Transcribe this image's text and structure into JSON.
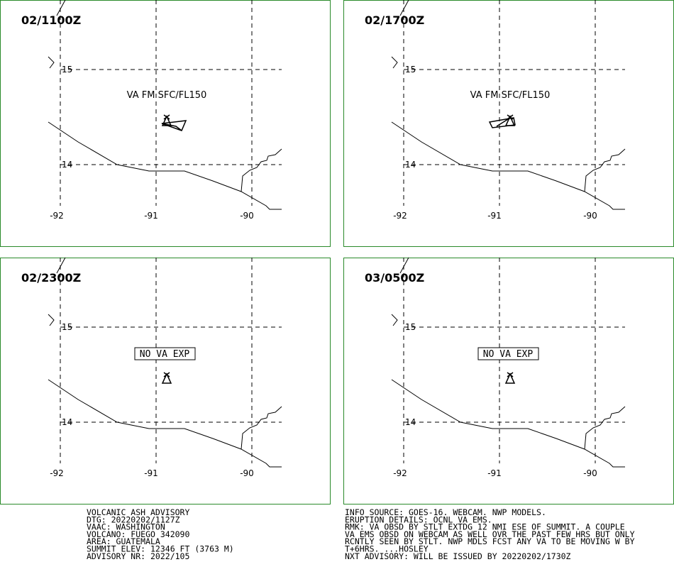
{
  "panels": [
    {
      "time": "02/1100Z",
      "lat_labels": [
        "15",
        "14"
      ],
      "lon_labels": [
        "-92",
        "-91",
        "-90"
      ],
      "annotation": "VA FM SFC/FL150"
    },
    {
      "time": "02/1700Z",
      "lat_labels": [
        "15",
        "14"
      ],
      "lon_labels": [
        "-92",
        "-91",
        "-90"
      ],
      "annotation": "VA FM SFC/FL150"
    },
    {
      "time": "02/2300Z",
      "lat_labels": [
        "15",
        "14"
      ],
      "lon_labels": [
        "-92",
        "-91",
        "-90"
      ],
      "boxed_annotation": "NO VA EXP"
    },
    {
      "time": "03/0500Z",
      "lat_labels": [
        "15",
        "14"
      ],
      "lon_labels": [
        "-92",
        "-91",
        "-90"
      ],
      "boxed_annotation": "NO VA EXP"
    }
  ],
  "advisory_left": [
    "VOLCANIC ASH ADVISORY",
    "DTG: 20220202/1127Z",
    "VAAC: WASHINGTON",
    "VOLCANO: FUEGO 342090",
    "AREA: GUATEMALA",
    "SUMMIT ELEV: 12346 FT (3763 M)",
    "ADVISORY NR: 2022/105"
  ],
  "advisory_right": [
    "INFO SOURCE: GOES-16. WEBCAM. NWP MODELS.",
    "ERUPTION DETAILS: OCNL VA EMS.",
    "RMK: VA OBSD BY STLT EXTDG 12 NMI ESE OF SUMMIT. A COUPLE",
    "VA EMS OBSD ON WEBCAM AS WELL OVR THE PAST FEW HRS BUT ONLY",
    "RCNTLY SEEN BY STLT. NWP MDLS FCST ANY VA TO BE MOVING W BY",
    "T+6HRS. ...HOSLEY",
    "NXT ADVISORY: WILL BE ISSUED BY 20220202/1730Z"
  ]
}
